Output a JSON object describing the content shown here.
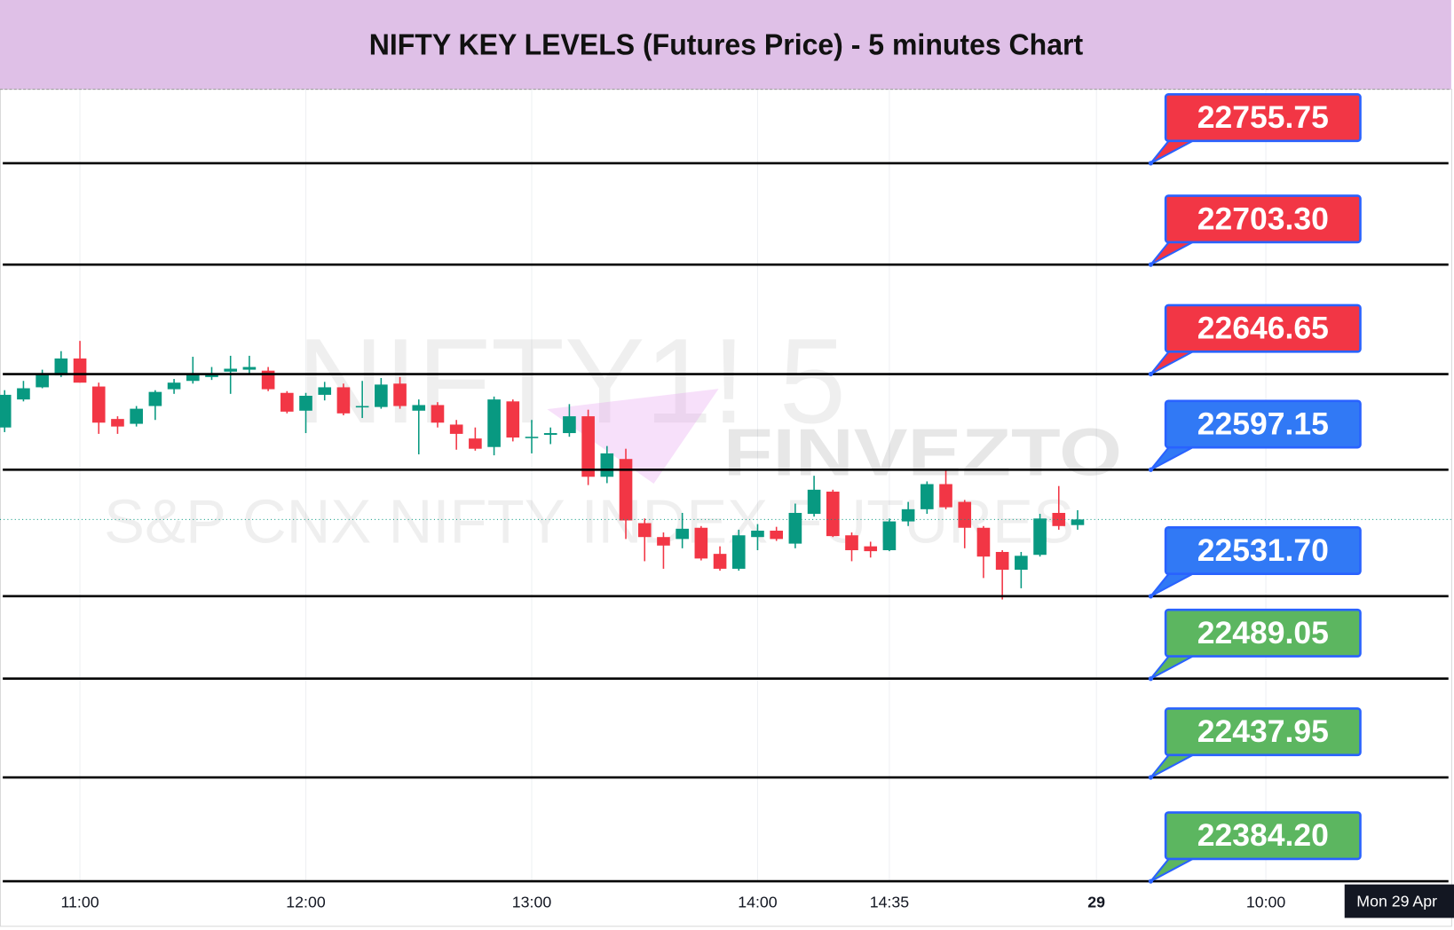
{
  "chart_data": {
    "type": "candlestick",
    "title": "NIFTY KEY LEVELS (Futures Price) - 5 minutes Chart",
    "watermarks": [
      "NIFTY1! 5",
      "FINVEZTO",
      "S&P CNX NIFTY INDEX FUTURES"
    ],
    "categories": [
      null,
      null,
      null,
      null,
      "11:00",
      null,
      null,
      null,
      null,
      null,
      null,
      null,
      null,
      null,
      null,
      null,
      "12:00",
      null,
      null,
      null,
      null,
      null,
      null,
      null,
      null,
      null,
      null,
      null,
      "13:00",
      null,
      null,
      null,
      null,
      null,
      null,
      null,
      null,
      null,
      null,
      null,
      "14:00",
      null,
      null,
      null,
      null,
      null,
      null,
      "14:35",
      null,
      null,
      null,
      null,
      null,
      null,
      null,
      null,
      null,
      null,
      "29",
      null,
      null,
      null,
      null,
      null,
      null,
      null,
      null,
      "10:00",
      null,
      null,
      null,
      null,
      null,
      null,
      null,
      null,
      null
    ],
    "open": [
      22619.0,
      22633.5,
      22639.8,
      22646.0,
      22654.7,
      22640.2,
      22623.4,
      22620.9,
      22630.1,
      22638.8,
      22643.1,
      22645.1,
      22647.9,
      22648.9,
      22648.4,
      22636.9,
      22627.7,
      22635.9,
      22639.8,
      22629.6,
      22629.6,
      22641.7,
      22627.7,
      22630.6,
      22620.5,
      22613.3,
      22608.9,
      22632.5,
      22613.8,
      22615.2,
      22616.1,
      22624.8,
      22593.5,
      22602.7,
      22569.5,
      22562.3,
      22561.3,
      22567.1,
      22553.6,
      22545.9,
      22562.3,
      22565.6,
      22558.9,
      22574.3,
      22585.8,
      22563.2,
      22557.5,
      22555.5,
      22570.4,
      22576.7,
      22589.7,
      22580.5,
      22567.1,
      22554.6,
      22545.4,
      22553.1,
      22574.8,
      22568.5,
      null,
      null,
      null,
      null,
      null,
      null,
      null,
      null,
      null,
      null,
      null,
      null,
      null,
      null,
      null,
      null,
      null,
      null,
      null
    ],
    "high": [
      22638.3,
      22643.1,
      22648.9,
      22658.5,
      22663.8,
      22642.2,
      22624.8,
      22630.1,
      22638.3,
      22644.1,
      22655.6,
      22650.3,
      22656.1,
      22656.1,
      22650.3,
      22637.8,
      22636.9,
      22642.6,
      22641.7,
      22643.1,
      22644.6,
      22645.1,
      22633.5,
      22632.1,
      22622.9,
      22619.0,
      22635.0,
      22633.5,
      22622.9,
      22619.0,
      22631.1,
      22628.2,
      22609.4,
      22608.0,
      22571.9,
      22564.7,
      22574.8,
      22568.0,
      22557.5,
      22566.1,
      22569.0,
      22567.6,
      22579.6,
      22594.0,
      22586.8,
      22564.7,
      22559.9,
      22571.9,
      22580.5,
      22591.1,
      22597.4,
      22581.5,
      22568.0,
      22555.5,
      22554.6,
      22574.3,
      22588.7,
      22576.2,
      null,
      null,
      null,
      null,
      null,
      null,
      null,
      null,
      null,
      null,
      null,
      null,
      null,
      null,
      null,
      null,
      null,
      null,
      null
    ],
    "low": [
      22616.6,
      22632.5,
      22639.3,
      22645.1,
      22642.2,
      22615.7,
      22615.7,
      22619.5,
      22622.9,
      22636.4,
      22641.7,
      22643.6,
      22636.4,
      22647.0,
      22637.8,
      22626.3,
      22616.1,
      22633.0,
      22625.3,
      22623.9,
      22628.7,
      22628.7,
      22605.1,
      22619.0,
      22607.5,
      22607.0,
      22604.6,
      22611.8,
      22605.6,
      22610.4,
      22614.2,
      22589.2,
      22590.2,
      22561.3,
      22549.8,
      22545.9,
      22556.5,
      22550.2,
      22544.9,
      22544.9,
      22555.5,
      22560.3,
      22556.5,
      22572.9,
      22562.3,
      22549.8,
      22551.7,
      22555.0,
      22568.0,
      22574.3,
      22576.7,
      22556.5,
      22541.1,
      22530.0,
      22535.8,
      22552.2,
      22566.1,
      22566.1,
      null,
      null,
      null,
      null,
      null,
      null,
      null,
      null,
      null,
      null,
      null,
      null,
      null,
      null,
      null,
      null,
      null,
      null,
      null
    ],
    "close": [
      22635.9,
      22639.3,
      22646.5,
      22654.7,
      22642.2,
      22621.5,
      22619.5,
      22628.7,
      22637.4,
      22642.2,
      22646.5,
      22647.0,
      22649.4,
      22650.3,
      22638.8,
      22627.2,
      22635.4,
      22639.8,
      22626.3,
      22630.1,
      22641.2,
      22630.1,
      22630.6,
      22621.5,
      22615.7,
      22608.0,
      22633.5,
      22613.8,
      22614.2,
      22616.1,
      22624.8,
      22593.5,
      22605.6,
      22570.9,
      22562.3,
      22557.9,
      22566.6,
      22551.2,
      22545.9,
      22563.2,
      22565.6,
      22561.3,
      22574.8,
      22586.8,
      22562.8,
      22555.5,
      22555.0,
      22570.4,
      22576.7,
      22589.7,
      22577.7,
      22567.1,
      22552.2,
      22545.4,
      22552.6,
      22571.9,
      22568.0,
      22571.4,
      null,
      null,
      null,
      null,
      null,
      null,
      null,
      null,
      null,
      null,
      null,
      null,
      null,
      null,
      null,
      null,
      null,
      null,
      null
    ],
    "up_color": "#089981",
    "down_color": "#f23645",
    "ylim": [
      22384,
      22794
    ],
    "levels": {
      "values": [
        22755.75,
        22703.3,
        22646.65,
        22597.15,
        22531.7,
        22489.05,
        22437.95,
        22384.2
      ],
      "value_labels": [
        "22755.75",
        "22703.30",
        "22646.65",
        "22597.15",
        "22531.70",
        "22489.05",
        "22437.95",
        "22384.20"
      ],
      "colors": [
        "#f23645",
        "#f23645",
        "#f23645",
        "#3179f5",
        "#3179f5",
        "#5cb660",
        "#5cb660",
        "#5cb660"
      ]
    },
    "crosshair_label": "Mon 29 Apr"
  }
}
